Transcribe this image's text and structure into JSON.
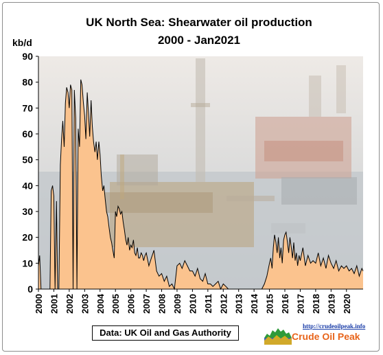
{
  "chart_data": {
    "type": "area",
    "title": "UK North Sea: Shearwater oil production",
    "subtitle": "2000 - Jan2021",
    "ylabel": "kb/d",
    "ylim": [
      0,
      90
    ],
    "yticks": [
      0,
      10,
      20,
      30,
      40,
      50,
      60,
      70,
      80,
      90
    ],
    "xlim": [
      2000,
      2021.08
    ],
    "xticks": [
      "2000",
      "2001",
      "2002",
      "2003",
      "2004",
      "2005",
      "2006",
      "2007",
      "2008",
      "2009",
      "2010",
      "2011",
      "2012",
      "2013",
      "2014",
      "2015",
      "2016",
      "2017",
      "2018",
      "2019",
      "2020"
    ],
    "grid": false,
    "fill_color": "#fbc38e",
    "line_color": "#000000",
    "background": "photo of offshore oil platforms",
    "series": [
      {
        "x": [
          2000.0,
          2000.08,
          2000.17,
          2000.25,
          2000.33,
          2000.42,
          2000.5,
          2000.58,
          2000.67,
          2000.75,
          2000.83,
          2000.92,
          2001.0,
          2001.08,
          2001.17,
          2001.25,
          2001.33,
          2001.42,
          2001.5,
          2001.58,
          2001.67,
          2001.75,
          2001.83,
          2001.92,
          2002.0,
          2002.08,
          2002.17,
          2002.25,
          2002.33,
          2002.42,
          2002.5,
          2002.58,
          2002.67,
          2002.75,
          2002.83,
          2002.92,
          2003.0,
          2003.08,
          2003.17,
          2003.25,
          2003.33,
          2003.42,
          2003.5,
          2003.58,
          2003.67,
          2003.75,
          2003.83,
          2003.92,
          2004.0,
          2004.08,
          2004.17,
          2004.25,
          2004.33,
          2004.42,
          2004.5,
          2004.58,
          2004.67,
          2004.75,
          2004.83,
          2004.92,
          2005.0,
          2005.08,
          2005.17,
          2005.25,
          2005.33,
          2005.42,
          2005.5,
          2005.58,
          2005.67,
          2005.75,
          2005.83,
          2005.92,
          2006.0,
          2006.08,
          2006.17,
          2006.25,
          2006.33,
          2006.42,
          2006.5,
          2006.58,
          2006.67,
          2006.75,
          2006.83,
          2006.92,
          2007.0,
          2007.17,
          2007.33,
          2007.5,
          2007.67,
          2007.83,
          2008.0,
          2008.17,
          2008.33,
          2008.5,
          2008.67,
          2008.83,
          2009.0,
          2009.17,
          2009.33,
          2009.5,
          2009.67,
          2009.83,
          2010.0,
          2010.17,
          2010.33,
          2010.5,
          2010.67,
          2010.83,
          2011.0,
          2011.17,
          2011.33,
          2011.5,
          2011.67,
          2011.83,
          2012.0,
          2012.17,
          2012.33,
          2012.5,
          2012.67,
          2012.83,
          2013.0,
          2013.5,
          2014.0,
          2014.5,
          2014.67,
          2014.83,
          2015.0,
          2015.08,
          2015.17,
          2015.25,
          2015.33,
          2015.42,
          2015.5,
          2015.58,
          2015.67,
          2015.75,
          2015.83,
          2015.92,
          2016.0,
          2016.08,
          2016.17,
          2016.25,
          2016.33,
          2016.42,
          2016.5,
          2016.58,
          2016.67,
          2016.75,
          2016.83,
          2016.92,
          2017.0,
          2017.17,
          2017.33,
          2017.5,
          2017.67,
          2017.83,
          2018.0,
          2018.17,
          2018.33,
          2018.5,
          2018.67,
          2018.83,
          2019.0,
          2019.17,
          2019.33,
          2019.5,
          2019.67,
          2019.83,
          2020.0,
          2020.17,
          2020.33,
          2020.5,
          2020.67,
          2020.83,
          2021.0,
          2021.08
        ],
        "y": [
          9,
          13,
          0,
          0,
          0,
          0,
          0,
          0,
          0,
          0,
          38,
          40,
          36,
          0,
          34,
          0,
          0,
          48,
          58,
          65,
          55,
          72,
          78,
          76,
          70,
          79,
          77,
          0,
          77,
          66,
          0,
          62,
          55,
          81,
          79,
          72,
          67,
          58,
          76,
          68,
          59,
          73,
          63,
          57,
          53,
          57,
          50,
          57,
          52,
          44,
          38,
          40,
          35,
          30,
          28,
          24,
          20,
          18,
          15,
          12,
          30,
          28,
          32,
          31,
          29,
          30,
          26,
          23,
          19,
          17,
          20,
          15,
          17,
          16,
          19,
          14,
          13,
          16,
          12,
          12,
          14,
          13,
          11,
          13,
          14,
          9,
          12,
          15,
          7,
          5,
          6,
          3,
          5,
          1,
          2,
          0,
          9,
          10,
          8,
          11,
          9,
          7,
          7,
          5,
          8,
          4,
          3,
          6,
          2,
          2,
          1,
          2,
          3,
          0,
          2,
          1,
          0,
          0,
          0,
          0,
          0,
          0,
          0,
          0,
          2,
          5,
          10,
          12,
          8,
          16,
          21,
          18,
          14,
          20,
          12,
          16,
          10,
          19,
          21,
          22,
          18,
          14,
          20,
          16,
          12,
          18,
          11,
          14,
          9,
          13,
          11,
          16,
          9,
          13,
          10,
          11,
          10,
          14,
          9,
          12,
          8,
          13,
          10,
          8,
          11,
          7,
          9,
          8,
          9,
          7,
          8,
          6,
          9,
          5,
          8,
          7
        ]
      }
    ]
  }
}
